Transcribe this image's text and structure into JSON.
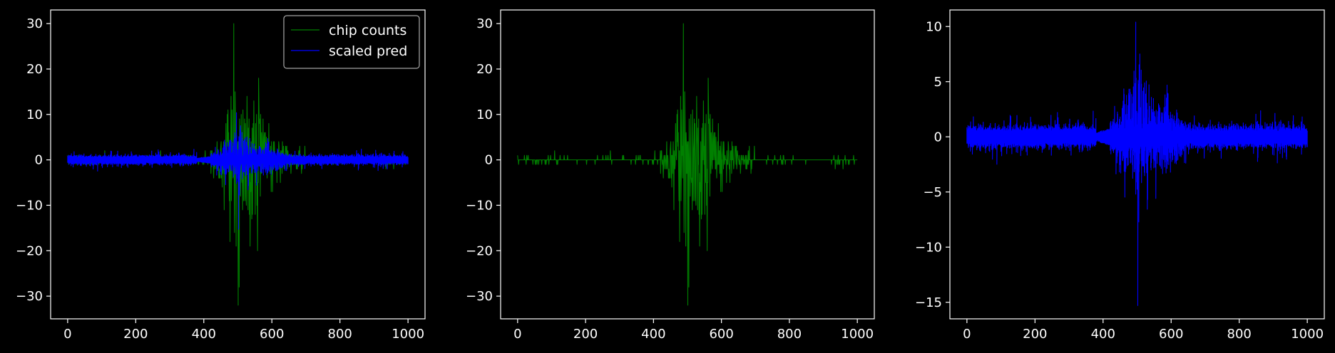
{
  "theme": {
    "background": "#000000",
    "foreground": "#ffffff",
    "green": "#008000",
    "blue": "#0000ff"
  },
  "chart_data": [
    {
      "type": "line",
      "xlim": [
        -50,
        1050
      ],
      "ylim": [
        -35,
        33
      ],
      "xticks": [
        0,
        200,
        400,
        600,
        800,
        1000
      ],
      "yticks": [
        -30,
        -20,
        -10,
        0,
        10,
        20,
        30
      ],
      "legend_position": "top-right",
      "series": [
        {
          "name": "chip counts",
          "color": "#008000",
          "x_range": [
            0,
            1000
          ],
          "signal": "counts",
          "approx_peak_max": 30,
          "approx_peak_min": -32
        },
        {
          "name": "scaled pred",
          "color": "#0000ff",
          "x_range": [
            0,
            1000
          ],
          "signal": "pred",
          "approx_peak_max": 10,
          "approx_peak_min": -15
        }
      ]
    },
    {
      "type": "line",
      "xlim": [
        -50,
        1050
      ],
      "ylim": [
        -35,
        33
      ],
      "xticks": [
        0,
        200,
        400,
        600,
        800,
        1000
      ],
      "yticks": [
        -30,
        -20,
        -10,
        0,
        10,
        20,
        30
      ],
      "series": [
        {
          "color": "#008000",
          "x_range": [
            0,
            1000
          ],
          "signal": "counts",
          "approx_peak_max": 30,
          "approx_peak_min": -32
        }
      ]
    },
    {
      "type": "line",
      "xlim": [
        -50,
        1050
      ],
      "ylim": [
        -16.5,
        11.5
      ],
      "xticks": [
        0,
        200,
        400,
        600,
        800,
        1000
      ],
      "yticks": [
        -15,
        -10,
        -5,
        0,
        5,
        10
      ],
      "series": [
        {
          "color": "#0000ff",
          "x_range": [
            0,
            1000
          ],
          "signal": "pred",
          "approx_peak_max": 10.4,
          "approx_peak_min": -15.3
        }
      ]
    }
  ]
}
